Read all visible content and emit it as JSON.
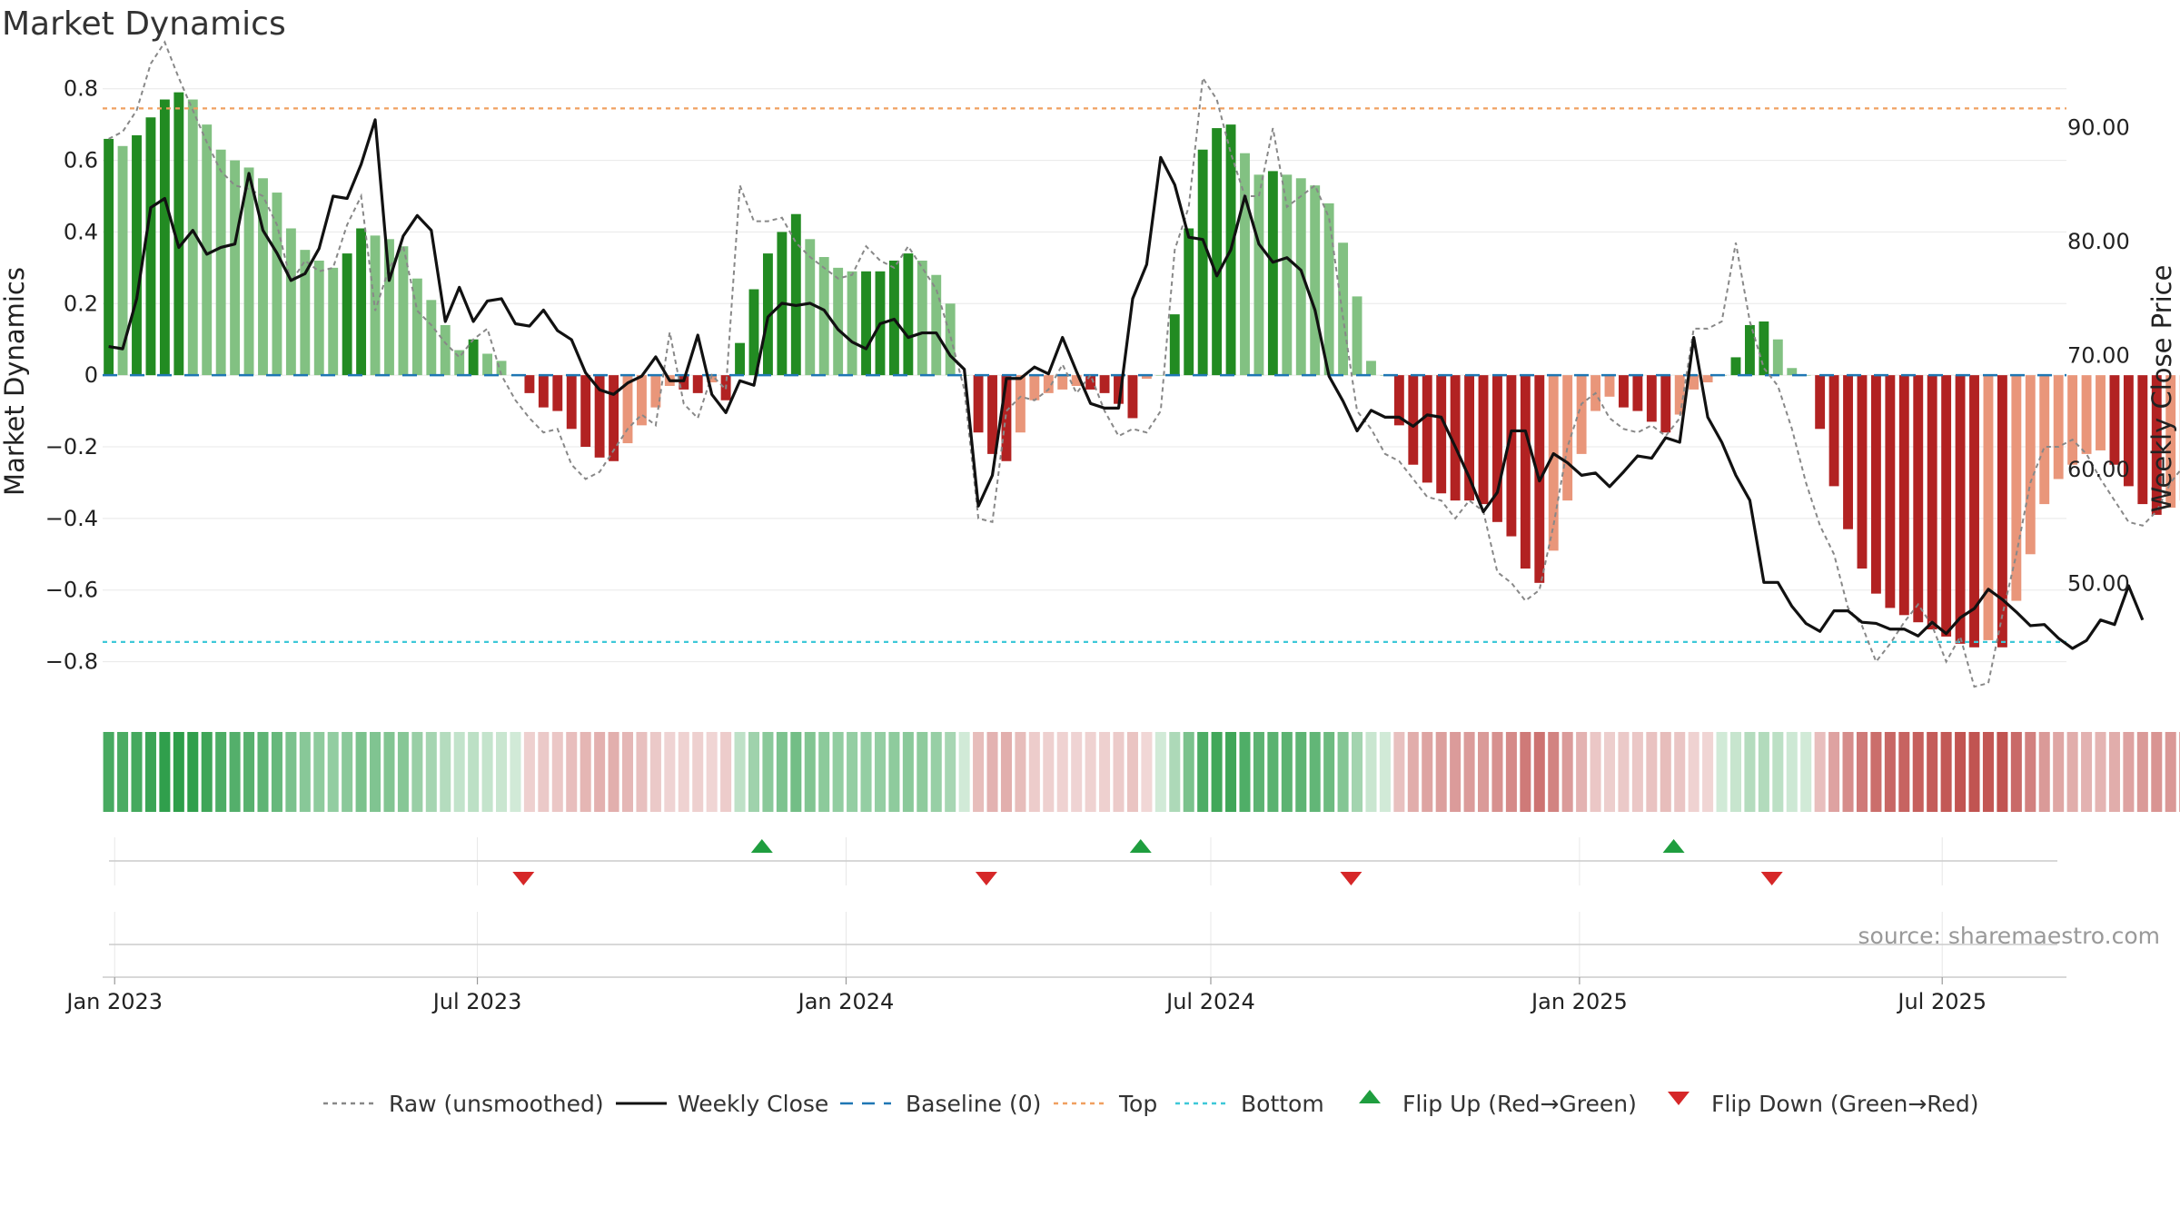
{
  "chart_data": {
    "type": "bar",
    "title": "Market Dynamics",
    "ylabel_left": "Market Dynamics",
    "ylabel_right": "Weekly Close Price",
    "ylim_left": [
      -0.9,
      0.85
    ],
    "ylim_right": [
      40,
      95
    ],
    "yticks_left": [
      {
        "value": 0.8,
        "label": "0.8"
      },
      {
        "value": 0.6,
        "label": "0.6"
      },
      {
        "value": 0.4,
        "label": "0.4"
      },
      {
        "value": 0.2,
        "label": "0.2"
      },
      {
        "value": 0,
        "label": "0"
      },
      {
        "value": -0.2,
        "label": "−0.2"
      },
      {
        "value": -0.4,
        "label": "−0.4"
      },
      {
        "value": -0.6,
        "label": "−0.6"
      },
      {
        "value": -0.8,
        "label": "−0.8"
      }
    ],
    "yticks_right": [
      {
        "value": 90,
        "label": "90.00"
      },
      {
        "value": 80,
        "label": "80.00"
      },
      {
        "value": 70,
        "label": "70.00"
      },
      {
        "value": 60,
        "label": "60.00"
      },
      {
        "value": 50,
        "label": "50.00"
      }
    ],
    "x_start": "2022-12-26",
    "x_end": "2025-09-01",
    "xticks": [
      {
        "date": "2023-01-01",
        "label": "Jan 2023"
      },
      {
        "date": "2023-07-01",
        "label": "Jul 2023"
      },
      {
        "date": "2024-01-01",
        "label": "Jan 2024"
      },
      {
        "date": "2024-07-01",
        "label": "Jul 2024"
      },
      {
        "date": "2025-01-01",
        "label": "Jan 2025"
      },
      {
        "date": "2025-07-01",
        "label": "Jul 2025"
      }
    ],
    "top_level": 0.745,
    "bottom_level": -0.745,
    "baseline": 0,
    "series": [
      {
        "name": "Market Dynamics",
        "kind": "bar",
        "values": [
          0.66,
          0.64,
          0.67,
          0.72,
          0.77,
          0.79,
          0.77,
          0.7,
          0.63,
          0.6,
          0.58,
          0.55,
          0.51,
          0.41,
          0.35,
          0.32,
          0.3,
          0.34,
          0.41,
          0.39,
          0.38,
          0.36,
          0.27,
          0.21,
          0.14,
          0.07,
          0.1,
          0.06,
          0.04,
          0.0,
          -0.05,
          -0.09,
          -0.1,
          -0.15,
          -0.2,
          -0.23,
          -0.24,
          -0.19,
          -0.14,
          -0.09,
          -0.03,
          -0.04,
          -0.05,
          -0.02,
          -0.07,
          0.09,
          0.24,
          0.34,
          0.4,
          0.45,
          0.38,
          0.33,
          0.3,
          0.29,
          0.29,
          0.29,
          0.32,
          0.34,
          0.32,
          0.28,
          0.2,
          0.0,
          -0.16,
          -0.22,
          -0.24,
          -0.16,
          -0.07,
          -0.05,
          -0.04,
          -0.03,
          -0.04,
          -0.05,
          -0.08,
          -0.12,
          -0.01,
          0.0,
          0.17,
          0.41,
          0.63,
          0.69,
          0.7,
          0.62,
          0.56,
          0.57,
          0.56,
          0.55,
          0.53,
          0.48,
          0.37,
          0.22,
          0.04,
          0.0,
          -0.14,
          -0.25,
          -0.3,
          -0.33,
          -0.35,
          -0.35,
          -0.36,
          -0.41,
          -0.45,
          -0.54,
          -0.58,
          -0.49,
          -0.35,
          -0.22,
          -0.1,
          -0.06,
          -0.09,
          -0.1,
          -0.13,
          -0.16,
          -0.11,
          -0.04,
          -0.02,
          0.0,
          0.05,
          0.14,
          0.15,
          0.1,
          0.02,
          0.0,
          -0.15,
          -0.31,
          -0.43,
          -0.54,
          -0.61,
          -0.65,
          -0.67,
          -0.69,
          -0.71,
          -0.73,
          -0.75,
          -0.76,
          -0.74,
          -0.76,
          -0.63,
          -0.5,
          -0.36,
          -0.29,
          -0.25,
          -0.22,
          -0.21,
          -0.25,
          -0.31,
          -0.36,
          -0.39,
          -0.37,
          -0.35,
          -0.29,
          -0.27
        ]
      },
      {
        "name": "Raw (unsmoothed)",
        "kind": "line",
        "values": [
          0.66,
          0.68,
          0.74,
          0.87,
          0.93,
          0.83,
          0.74,
          0.65,
          0.57,
          0.53,
          0.52,
          0.5,
          0.42,
          0.26,
          0.32,
          0.29,
          0.3,
          0.42,
          0.5,
          0.18,
          0.3,
          0.36,
          0.18,
          0.14,
          0.09,
          0.05,
          0.1,
          0.13,
          0.0,
          -0.07,
          -0.12,
          -0.16,
          -0.15,
          -0.25,
          -0.29,
          -0.27,
          -0.21,
          -0.15,
          -0.11,
          -0.14,
          0.12,
          -0.08,
          -0.12,
          0.0,
          -0.04,
          0.53,
          0.43,
          0.43,
          0.44,
          0.37,
          0.33,
          0.3,
          0.27,
          0.28,
          0.36,
          0.32,
          0.3,
          0.36,
          0.3,
          0.24,
          0.11,
          -0.04,
          -0.4,
          -0.41,
          -0.1,
          -0.06,
          -0.07,
          -0.04,
          0.03,
          -0.05,
          0.0,
          -0.1,
          -0.17,
          -0.15,
          -0.16,
          -0.1,
          0.35,
          0.47,
          0.83,
          0.77,
          0.62,
          0.5,
          0.5,
          0.69,
          0.47,
          0.5,
          0.53,
          0.44,
          0.16,
          -0.1,
          -0.15,
          -0.22,
          -0.24,
          -0.29,
          -0.34,
          -0.35,
          -0.4,
          -0.35,
          -0.38,
          -0.55,
          -0.58,
          -0.63,
          -0.6,
          -0.42,
          -0.2,
          -0.08,
          -0.05,
          -0.12,
          -0.15,
          -0.16,
          -0.14,
          -0.17,
          -0.12,
          0.13,
          0.13,
          0.15,
          0.37,
          0.15,
          0.02,
          -0.03,
          -0.15,
          -0.3,
          -0.42,
          -0.5,
          -0.65,
          -0.7,
          -0.8,
          -0.75,
          -0.69,
          -0.64,
          -0.7,
          -0.8,
          -0.73,
          -0.87,
          -0.86,
          -0.67,
          -0.5,
          -0.3,
          -0.2,
          -0.2,
          -0.18,
          -0.22,
          -0.29,
          -0.35,
          -0.41,
          -0.42,
          -0.38,
          -0.3,
          -0.25,
          -0.32
        ]
      },
      {
        "name": "Weekly Close",
        "kind": "line",
        "axis": "right",
        "values": [
          70.8,
          70.6,
          75.0,
          83.0,
          83.8,
          79.5,
          81.0,
          78.9,
          79.5,
          79.8,
          86.0,
          81.0,
          79.0,
          76.6,
          77.2,
          79.4,
          84.0,
          83.8,
          86.8,
          90.7,
          76.6,
          80.5,
          82.3,
          81.0,
          73.0,
          76.0,
          73.0,
          74.8,
          75.0,
          72.8,
          72.6,
          74.0,
          72.2,
          71.4,
          68.5,
          67.0,
          66.6,
          67.6,
          68.2,
          69.9,
          67.8,
          67.8,
          71.8,
          66.6,
          65.0,
          67.8,
          67.4,
          73.4,
          74.6,
          74.4,
          74.6,
          74.0,
          72.3,
          71.2,
          70.6,
          72.8,
          73.2,
          71.6,
          72.0,
          72.0,
          70.0,
          68.8,
          56.8,
          59.5,
          68.0,
          68.0,
          69.0,
          68.4,
          71.6,
          68.6,
          65.8,
          65.4,
          65.4,
          75.0,
          78.0,
          87.4,
          85.0,
          80.4,
          80.2,
          77.0,
          79.3,
          84.0,
          79.8,
          78.2,
          78.6,
          77.5,
          74.0,
          68.2,
          66.0,
          63.4,
          65.2,
          64.6,
          64.6,
          63.8,
          64.8,
          64.6,
          62.0,
          59.3,
          56.3,
          58.0,
          63.4,
          63.4,
          59.0,
          61.4,
          60.6,
          59.5,
          59.7,
          58.5,
          59.8,
          61.2,
          61.0,
          62.8,
          62.4,
          71.6,
          64.6,
          62.4,
          59.5,
          57.3,
          50.1,
          50.1,
          48.0,
          46.5,
          45.8,
          47.6,
          47.6,
          46.6,
          46.5,
          46.0,
          46.0,
          45.4,
          46.6,
          45.6,
          47.0,
          47.8,
          49.5,
          48.6,
          47.5,
          46.3,
          46.4,
          45.2,
          44.3,
          45.0,
          46.8,
          46.4,
          49.8,
          46.8
        ]
      }
    ],
    "flip_up_dates": [
      "2023-11-20",
      "2024-05-27",
      "2025-02-17"
    ],
    "flip_down_dates": [
      "2023-07-24",
      "2024-03-11",
      "2024-09-09",
      "2025-04-07"
    ],
    "legend": [
      {
        "label": "Raw (unsmoothed)",
        "kind": "dotted",
        "color": "#888888"
      },
      {
        "label": "Weekly Close",
        "kind": "solid",
        "color": "#111111"
      },
      {
        "label": "Baseline (0)",
        "kind": "dashed",
        "color": "#1f77b4"
      },
      {
        "label": "Top",
        "kind": "dotted",
        "color": "#f0a060"
      },
      {
        "label": "Bottom",
        "kind": "dotted",
        "color": "#3ec8d8"
      },
      {
        "label": "Flip Up (Red→Green)",
        "kind": "tri-up",
        "color": "#1f9e3f"
      },
      {
        "label": "Flip Down (Green→Red)",
        "kind": "tri-down",
        "color": "#d62728"
      }
    ],
    "legend_placement": "bottom-center",
    "grid": true
  },
  "source_text": "source: sharemaestro.com",
  "colors": {
    "green_strong": "#228b22",
    "green_light": "#82c182",
    "red_strong": "#b22222",
    "red_light": "#e9967a",
    "top_line": "#f0a060",
    "bottom_line": "#3ec8d8",
    "baseline": "#1f77b4",
    "close_line": "#111111",
    "raw_line": "#888888",
    "grid": "#e8e8e8"
  }
}
